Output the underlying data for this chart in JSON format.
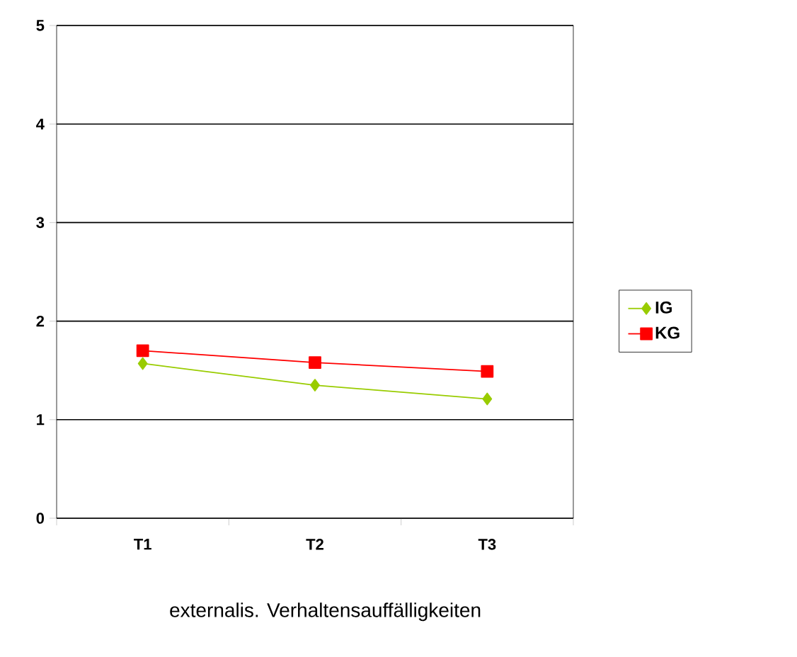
{
  "chart_data": {
    "type": "line",
    "xlabel": "externalis. Verhaltensauffälligkeiten",
    "categories": [
      "T1",
      "T2",
      "T3"
    ],
    "series": [
      {
        "name": "IG",
        "color": "#99cc00",
        "marker": "diamond",
        "values": [
          1.57,
          1.35,
          1.21
        ]
      },
      {
        "name": "KG",
        "color": "#ff0000",
        "marker": "square",
        "values": [
          1.7,
          1.58,
          1.49
        ]
      }
    ],
    "ylim": [
      0,
      5
    ],
    "yticks": [
      0,
      1,
      2,
      3,
      4,
      5
    ],
    "grid": "y",
    "legend": "right"
  }
}
